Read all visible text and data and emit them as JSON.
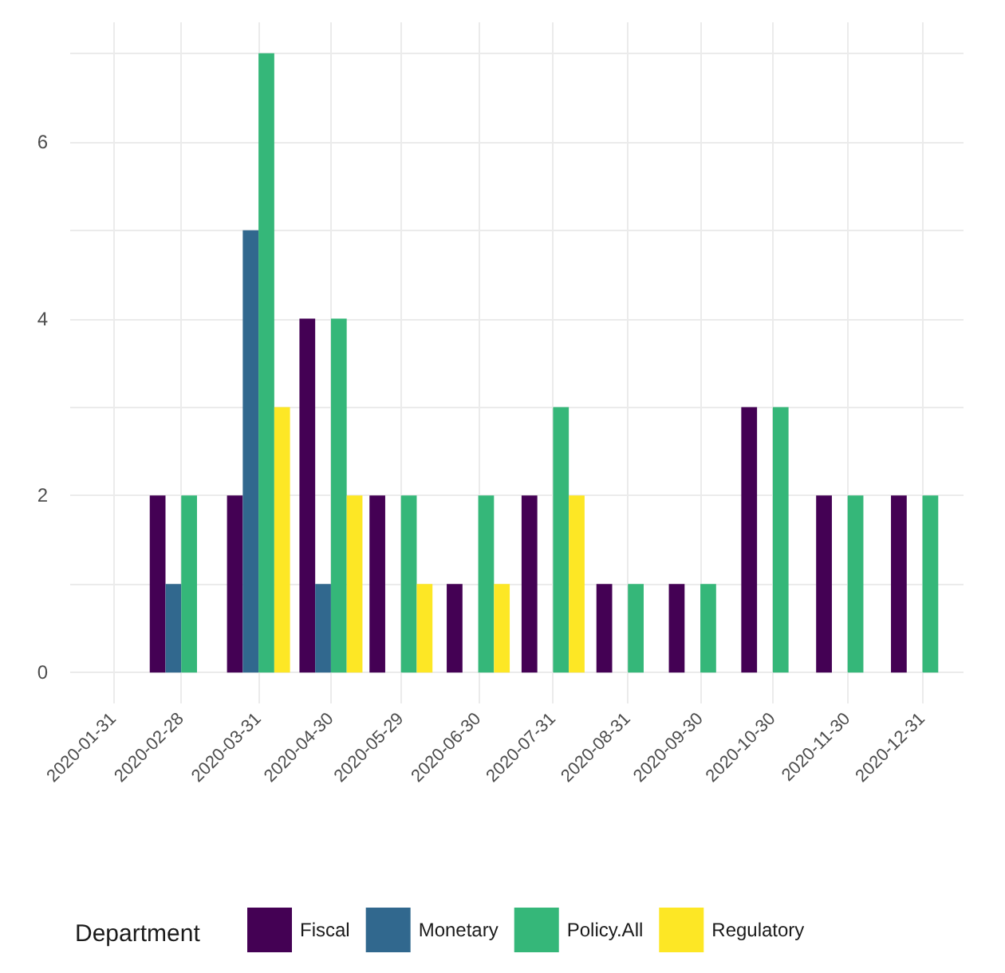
{
  "chart_data": {
    "type": "bar",
    "legend_title": "Department",
    "x": [
      "2020-02-28",
      "2020-03-31",
      "2020-04-30",
      "2020-05-29",
      "2020-06-30",
      "2020-07-31",
      "2020-08-31",
      "2020-09-30",
      "2020-10-30",
      "2020-11-30",
      "2020-12-31"
    ],
    "series": [
      {
        "name": "Fiscal",
        "color": "#440154",
        "values": [
          2,
          2,
          4,
          2,
          1,
          2,
          1,
          1,
          3,
          2,
          2
        ]
      },
      {
        "name": "Monetary",
        "color": "#31688e",
        "values": [
          1,
          5,
          1,
          null,
          null,
          null,
          null,
          null,
          null,
          null,
          null
        ]
      },
      {
        "name": "Policy.All",
        "color": "#35b779",
        "values": [
          2,
          7,
          4,
          2,
          2,
          3,
          1,
          1,
          3,
          2,
          2
        ]
      },
      {
        "name": "Regulatory",
        "color": "#fde725",
        "values": [
          null,
          3,
          2,
          1,
          1,
          2,
          null,
          null,
          null,
          null,
          null
        ]
      }
    ],
    "xlim": [
      "2020-01-13",
      "2021-01-17"
    ],
    "xticks": [
      {
        "value": "2020-01-31",
        "label": "2020-01-31"
      },
      {
        "value": "2020-02-28",
        "label": "2020-02-28"
      },
      {
        "value": "2020-03-31",
        "label": "2020-03-31"
      },
      {
        "value": "2020-04-30",
        "label": "2020-04-30"
      },
      {
        "value": "2020-05-29",
        "label": "2020-05-29"
      },
      {
        "value": "2020-06-30",
        "label": "2020-06-30"
      },
      {
        "value": "2020-07-31",
        "label": "2020-07-31"
      },
      {
        "value": "2020-08-31",
        "label": "2020-08-31"
      },
      {
        "value": "2020-09-30",
        "label": "2020-09-30"
      },
      {
        "value": "2020-10-30",
        "label": "2020-10-30"
      },
      {
        "value": "2020-11-30",
        "label": "2020-11-30"
      },
      {
        "value": "2020-12-31",
        "label": "2020-12-31"
      }
    ],
    "ylim": [
      -0.35,
      7.35
    ],
    "yticks": [
      0,
      {
        "value": 1,
        "label": null
      },
      2,
      {
        "value": 3,
        "label": null
      },
      4,
      {
        "value": 5,
        "label": null
      },
      6,
      {
        "value": 7,
        "label": null
      }
    ],
    "grid": true,
    "legend": "bottom"
  }
}
